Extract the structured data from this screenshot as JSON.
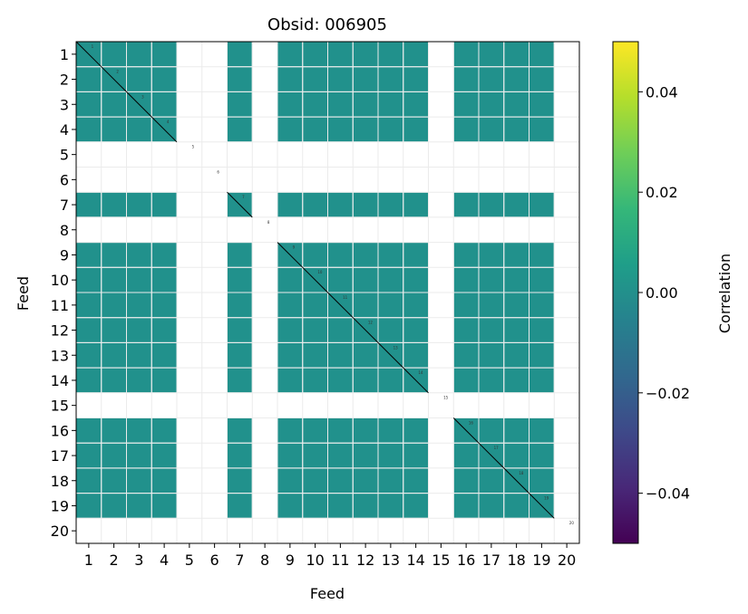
{
  "chart_data": {
    "type": "heatmap",
    "title": "Obsid: 006905",
    "xlabel": "Feed",
    "ylabel": "Feed",
    "x_ticks": [
      "1",
      "2",
      "3",
      "4",
      "5",
      "6",
      "7",
      "8",
      "9",
      "10",
      "11",
      "12",
      "13",
      "14",
      "15",
      "16",
      "17",
      "18",
      "19",
      "20"
    ],
    "y_ticks": [
      "1",
      "2",
      "3",
      "4",
      "5",
      "6",
      "7",
      "8",
      "9",
      "10",
      "11",
      "12",
      "13",
      "14",
      "15",
      "16",
      "17",
      "18",
      "19",
      "20"
    ],
    "n_feeds": 20,
    "missing_feeds": [
      5,
      6,
      8,
      15,
      20
    ],
    "diagonal_value_labels": [
      "1",
      "2",
      "3",
      "4",
      "5",
      "6",
      "7",
      "8",
      "9",
      "10",
      "11",
      "12",
      "13",
      "14",
      "15",
      "16",
      "17",
      "18",
      "19",
      "20"
    ],
    "off_diagonal_value": 0.0,
    "colormap": "viridis",
    "colors": {
      "cell": "#21918c",
      "diagonal_line": "#000000",
      "grid": "#ebebeb",
      "background": "#ffffff"
    },
    "colorbar": {
      "label": "Correlation",
      "vmin": -0.05,
      "vmax": 0.05,
      "ticks": [
        {
          "value": 0.04,
          "label": "0.04"
        },
        {
          "value": 0.02,
          "label": "0.02"
        },
        {
          "value": 0.0,
          "label": "0.00"
        },
        {
          "value": -0.02,
          "label": "−0.02"
        },
        {
          "value": -0.04,
          "label": "−0.04"
        }
      ],
      "colors": [
        "#440154",
        "#482878",
        "#3e4989",
        "#31688e",
        "#26828e",
        "#1f9e89",
        "#35b779",
        "#6ece58",
        "#b5de2b",
        "#fde725"
      ]
    },
    "grid": true
  }
}
